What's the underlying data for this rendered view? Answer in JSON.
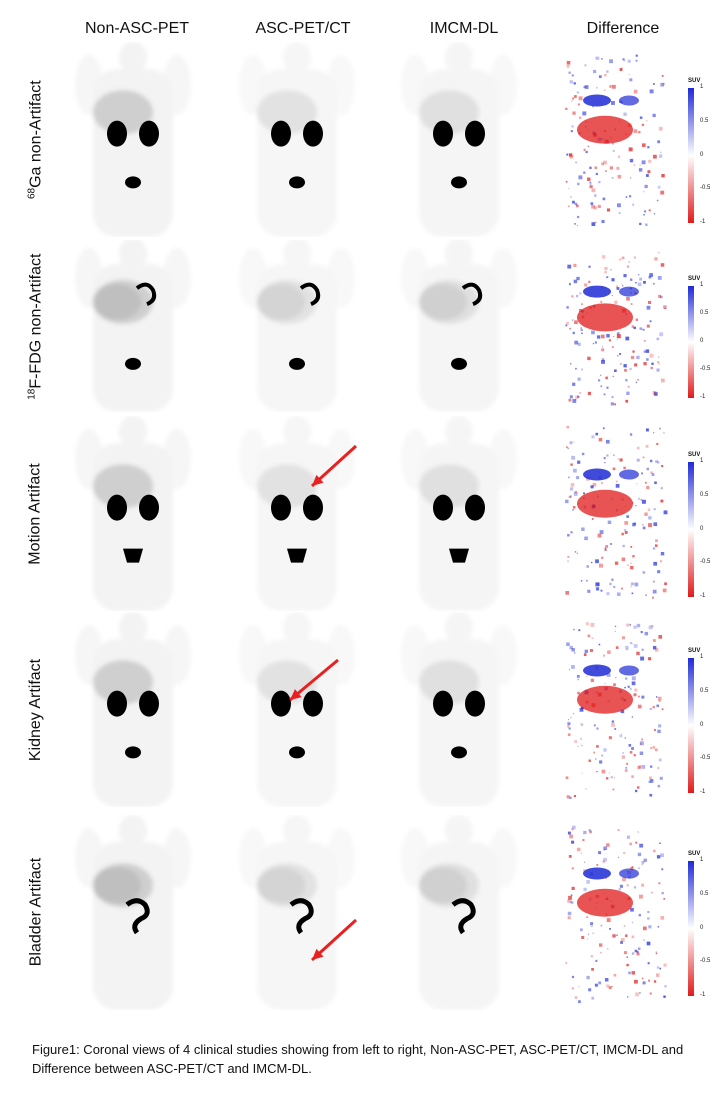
{
  "columns": [
    "Non-ASC-PET",
    "ASC-PET/CT",
    "IMCM-DL",
    "Difference"
  ],
  "rows": [
    {
      "prefix_sup": "68",
      "label": "Ga non-Artifact"
    },
    {
      "prefix_sup": "18",
      "label": "F-FDG non-Artifact"
    },
    {
      "prefix_sup": "",
      "label": "Motion Artifact"
    },
    {
      "prefix_sup": "",
      "label": "Kidney Artifact"
    },
    {
      "prefix_sup": "",
      "label": "Bladder Artifact"
    }
  ],
  "colorbar": {
    "unit": "SUV",
    "ticks": [
      "1",
      "0.5",
      "0",
      "-0.5",
      "-1"
    ],
    "colors": {
      "positive": "#1f2bd6",
      "negative": "#e01b1b",
      "zero": "#ffffff"
    }
  },
  "arrows": {
    "color": "#e82020"
  },
  "caption": "Figure1: Coronal views of 4 clinical studies showing from left to right, Non-ASC-PET, ASC-PET/CT, IMCM-DL and Difference between ASC-PET/CT and IMCM-DL."
}
